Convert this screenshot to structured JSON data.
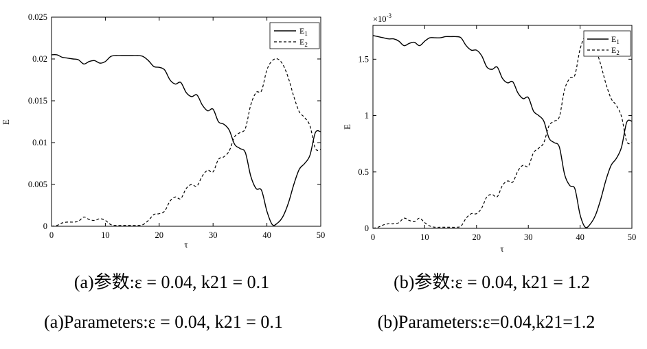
{
  "chart_data": [
    {
      "id": "a",
      "type": "line",
      "xlabel": "τ",
      "ylabel": "E",
      "xlim": [
        0,
        50
      ],
      "ylim": [
        0,
        0.025
      ],
      "xticks": [
        "0",
        "10",
        "20",
        "30",
        "40",
        "50"
      ],
      "yticks": [
        "0",
        "0.005",
        "0.01",
        "0.015",
        "0.02",
        "0.025"
      ],
      "exponent_label": "",
      "legend_position": "top-right",
      "caption_cn": "(a)参数:ε = 0.04, k21 = 0.1",
      "caption_en": "(a)Parameters:ε = 0.04, k21 = 0.1",
      "series": [
        {
          "name": "E1",
          "style": "solid",
          "x": [
            0,
            1,
            2,
            3,
            4,
            5,
            6,
            7,
            8,
            9,
            10,
            11,
            12,
            13,
            14,
            15,
            16,
            17,
            18,
            19,
            20,
            21,
            22,
            23,
            24,
            25,
            26,
            27,
            28,
            29,
            30,
            31,
            32,
            33,
            34,
            35,
            36,
            37,
            38,
            39,
            40,
            41,
            42,
            43,
            44,
            45,
            46,
            47,
            48,
            49,
            50
          ],
          "y": [
            0.0205,
            0.0205,
            0.0202,
            0.0201,
            0.02,
            0.0199,
            0.0194,
            0.0197,
            0.0198,
            0.0195,
            0.0197,
            0.0203,
            0.0204,
            0.0204,
            0.0204,
            0.0204,
            0.0204,
            0.0203,
            0.0198,
            0.0191,
            0.019,
            0.0187,
            0.0175,
            0.017,
            0.0172,
            0.016,
            0.0155,
            0.0157,
            0.0145,
            0.0138,
            0.014,
            0.0125,
            0.0122,
            0.0115,
            0.0098,
            0.0093,
            0.0088,
            0.006,
            0.0045,
            0.0043,
            0.0018,
            0.0002,
            0.0004,
            0.0012,
            0.0028,
            0.005,
            0.0068,
            0.0075,
            0.0085,
            0.0112,
            0.0113
          ]
        },
        {
          "name": "E2",
          "style": "dashed",
          "x": [
            0,
            1,
            2,
            3,
            4,
            5,
            6,
            7,
            8,
            9,
            10,
            11,
            12,
            13,
            14,
            15,
            16,
            17,
            18,
            19,
            20,
            21,
            22,
            23,
            24,
            25,
            26,
            27,
            28,
            29,
            30,
            31,
            32,
            33,
            34,
            35,
            36,
            37,
            38,
            39,
            40,
            41,
            42,
            43,
            44,
            45,
            46,
            47,
            48,
            49,
            50
          ],
          "y": [
            0.0,
            0.0001,
            0.0004,
            0.0005,
            0.0005,
            0.0006,
            0.0011,
            0.0008,
            0.0007,
            0.0009,
            0.0007,
            0.0002,
            0.0001,
            0.0001,
            0.0001,
            0.0001,
            0.0001,
            0.0002,
            0.0007,
            0.0014,
            0.0015,
            0.0018,
            0.003,
            0.0035,
            0.0033,
            0.0045,
            0.005,
            0.0048,
            0.006,
            0.0067,
            0.0065,
            0.008,
            0.0083,
            0.009,
            0.0107,
            0.0112,
            0.0117,
            0.0145,
            0.016,
            0.0162,
            0.0187,
            0.0198,
            0.02,
            0.0193,
            0.0177,
            0.0155,
            0.0137,
            0.013,
            0.012,
            0.0093,
            0.0092
          ]
        }
      ]
    },
    {
      "id": "b",
      "type": "line",
      "xlabel": "τ",
      "ylabel": "E",
      "xlim": [
        0,
        50
      ],
      "ylim": [
        0,
        1.8
      ],
      "xticks": [
        "0",
        "10",
        "20",
        "30",
        "40",
        "50"
      ],
      "yticks": [
        "0",
        "0.5",
        "1",
        "1.5"
      ],
      "exponent_label": "×10",
      "exponent_power": "-3",
      "legend_position": "top-right",
      "caption_cn": "(b)参数:ε = 0.04, k21 = 1.2",
      "caption_en": "(b)Parameters:ε=0.04,k21=1.2",
      "series": [
        {
          "name": "E1",
          "style": "solid",
          "x": [
            0,
            1,
            2,
            3,
            4,
            5,
            6,
            7,
            8,
            9,
            10,
            11,
            12,
            13,
            14,
            15,
            16,
            17,
            18,
            19,
            20,
            21,
            22,
            23,
            24,
            25,
            26,
            27,
            28,
            29,
            30,
            31,
            32,
            33,
            34,
            35,
            36,
            37,
            38,
            39,
            40,
            41,
            42,
            43,
            44,
            45,
            46,
            47,
            48,
            49,
            50
          ],
          "y": [
            1.71,
            1.7,
            1.69,
            1.68,
            1.68,
            1.66,
            1.62,
            1.64,
            1.65,
            1.62,
            1.66,
            1.69,
            1.69,
            1.69,
            1.7,
            1.7,
            1.7,
            1.69,
            1.62,
            1.58,
            1.58,
            1.53,
            1.43,
            1.41,
            1.43,
            1.33,
            1.29,
            1.3,
            1.2,
            1.15,
            1.16,
            1.04,
            1.0,
            0.95,
            0.8,
            0.76,
            0.72,
            0.48,
            0.38,
            0.35,
            0.12,
            0.01,
            0.04,
            0.12,
            0.26,
            0.43,
            0.56,
            0.62,
            0.72,
            0.94,
            0.95
          ]
        },
        {
          "name": "E2",
          "style": "dashed",
          "x": [
            0,
            1,
            2,
            3,
            4,
            5,
            6,
            7,
            8,
            9,
            10,
            11,
            12,
            13,
            14,
            15,
            16,
            17,
            18,
            19,
            20,
            21,
            22,
            23,
            24,
            25,
            26,
            27,
            28,
            29,
            30,
            31,
            32,
            33,
            34,
            35,
            36,
            37,
            38,
            39,
            40,
            41,
            42,
            43,
            44,
            45,
            46,
            47,
            48,
            49,
            50
          ],
          "y": [
            0.0,
            0.01,
            0.03,
            0.04,
            0.04,
            0.05,
            0.09,
            0.07,
            0.06,
            0.09,
            0.05,
            0.02,
            0.01,
            0.01,
            0.01,
            0.01,
            0.01,
            0.02,
            0.09,
            0.13,
            0.13,
            0.18,
            0.28,
            0.3,
            0.28,
            0.38,
            0.42,
            0.41,
            0.51,
            0.56,
            0.55,
            0.67,
            0.71,
            0.76,
            0.91,
            0.95,
            0.99,
            1.23,
            1.33,
            1.36,
            1.59,
            1.7,
            1.67,
            1.59,
            1.45,
            1.28,
            1.15,
            1.09,
            0.99,
            0.77,
            0.76
          ]
        }
      ]
    }
  ]
}
